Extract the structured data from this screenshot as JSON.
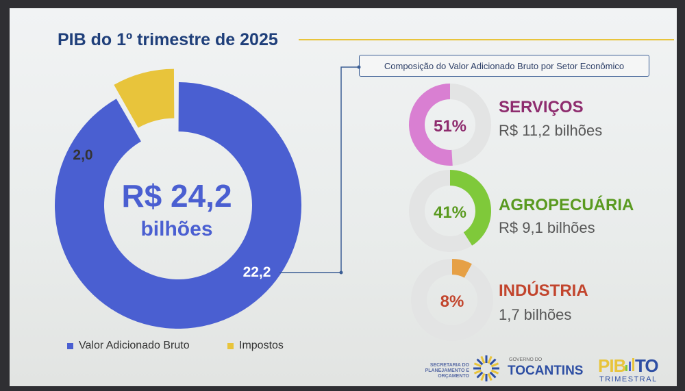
{
  "title": "PIB do 1º trimestre de 2025",
  "subtitle_box": "Composição do Valor Adicionado Bruto por Setor Econômico",
  "chart_data": [
    {
      "type": "pie",
      "style": "donut",
      "center_text": [
        "R$ 24,2",
        "bilhões"
      ],
      "slices": [
        {
          "label": "Valor Adicionado Bruto",
          "value": 22.2,
          "display": "22,2",
          "color": "#4a5fd1"
        },
        {
          "label": "Impostos",
          "value": 2.0,
          "display": "2,0",
          "color": "#e8c43b"
        }
      ],
      "legend": [
        "Valor Adicionado Bruto",
        "Impostos"
      ],
      "legend_placement": "bottom"
    },
    {
      "type": "pie",
      "style": "donut-gauges",
      "sectors": [
        {
          "name": "SERVIÇOS",
          "percent": 51,
          "percent_label": "51%",
          "value_label": "R$ 11,2 bilhões",
          "color": "#d97fd2",
          "name_color": "#8e2c6e"
        },
        {
          "name": "AGROPECUÁRIA",
          "percent": 41,
          "percent_label": "41%",
          "value_label": "R$ 9,1 bilhões",
          "color": "#7fc93a",
          "name_color": "#5a9a20"
        },
        {
          "name": "INDÚSTRIA",
          "percent": 8,
          "percent_label": "8%",
          "value_label": "1,7 bilhões",
          "color": "#e6a045",
          "name_color": "#c2452d"
        }
      ]
    }
  ],
  "footer": {
    "secretaria": "SECRETARIA DO PLANEJAMENTO E ORÇAMENTO",
    "gov_small": "GOVERNO DO",
    "gov": "TOCANTINS",
    "pib": "PIB",
    "to": "TO",
    "trimestral": "TRIMESTRAL"
  },
  "colors": {
    "ring_track": "#e3e4e4",
    "title": "#1f3f7a",
    "connector": "#3a5d94"
  }
}
